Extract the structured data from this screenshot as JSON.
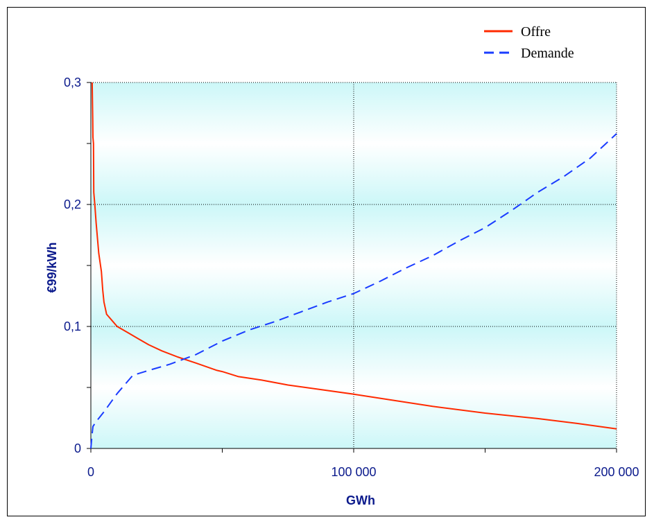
{
  "chart_data": {
    "type": "line",
    "title": "",
    "xlabel": "GWh",
    "ylabel": "€99/kWh",
    "xlim": [
      0,
      200000
    ],
    "ylim": [
      0,
      0.3
    ],
    "x_ticks": [
      {
        "value": 0,
        "label": "0"
      },
      {
        "value": 100000,
        "label": "100 000"
      },
      {
        "value": 200000,
        "label": "200 000"
      }
    ],
    "y_ticks": [
      {
        "value": 0,
        "label": "0"
      },
      {
        "value": 0.1,
        "label": "0,1"
      },
      {
        "value": 0.2,
        "label": "0,2"
      },
      {
        "value": 0.3,
        "label": "0,3"
      }
    ],
    "x_minor_ticks": [
      50000,
      150000
    ],
    "y_minor_ticks": [
      0.05,
      0.15,
      0.25
    ],
    "grid": true,
    "legend_position": "top-right",
    "background": {
      "top": "#ffffff",
      "bottom": "#ccf7f8"
    },
    "series": [
      {
        "name": "Offre",
        "color": "#ff2a00",
        "style": "solid",
        "points": [
          [
            500,
            0.3
          ],
          [
            700,
            0.27
          ],
          [
            800,
            0.255
          ],
          [
            1000,
            0.25
          ],
          [
            1100,
            0.21
          ],
          [
            1500,
            0.2
          ],
          [
            2000,
            0.185
          ],
          [
            3000,
            0.16
          ],
          [
            4000,
            0.145
          ],
          [
            4500,
            0.13
          ],
          [
            5000,
            0.12
          ],
          [
            5500,
            0.115
          ],
          [
            6000,
            0.11
          ],
          [
            8000,
            0.105
          ],
          [
            10000,
            0.1
          ],
          [
            14000,
            0.095
          ],
          [
            18000,
            0.09
          ],
          [
            22000,
            0.085
          ],
          [
            27000,
            0.08
          ],
          [
            33000,
            0.075
          ],
          [
            40000,
            0.07
          ],
          [
            48000,
            0.064
          ],
          [
            50000,
            0.063
          ],
          [
            56000,
            0.059
          ],
          [
            65000,
            0.056
          ],
          [
            75000,
            0.052
          ],
          [
            85000,
            0.049
          ],
          [
            100000,
            0.0445
          ],
          [
            115000,
            0.0395
          ],
          [
            130000,
            0.0345
          ],
          [
            150000,
            0.029
          ],
          [
            170000,
            0.0245
          ],
          [
            185000,
            0.0205
          ],
          [
            200000,
            0.016
          ]
        ]
      },
      {
        "name": "Demande",
        "color": "#1a3cff",
        "style": "dashed",
        "points": [
          [
            0,
            0.0
          ],
          [
            400,
            0.01
          ],
          [
            800,
            0.018
          ],
          [
            2000,
            0.022
          ],
          [
            5000,
            0.03
          ],
          [
            10000,
            0.045
          ],
          [
            16000,
            0.06
          ],
          [
            22000,
            0.064
          ],
          [
            30000,
            0.069
          ],
          [
            40000,
            0.077
          ],
          [
            50000,
            0.088
          ],
          [
            60000,
            0.097
          ],
          [
            70000,
            0.104
          ],
          [
            80000,
            0.112
          ],
          [
            90000,
            0.12
          ],
          [
            100000,
            0.127
          ],
          [
            110000,
            0.137
          ],
          [
            120000,
            0.148
          ],
          [
            130000,
            0.158
          ],
          [
            140000,
            0.17
          ],
          [
            150000,
            0.181
          ],
          [
            160000,
            0.195
          ],
          [
            170000,
            0.21
          ],
          [
            180000,
            0.223
          ],
          [
            190000,
            0.238
          ],
          [
            200000,
            0.258
          ]
        ]
      }
    ]
  }
}
